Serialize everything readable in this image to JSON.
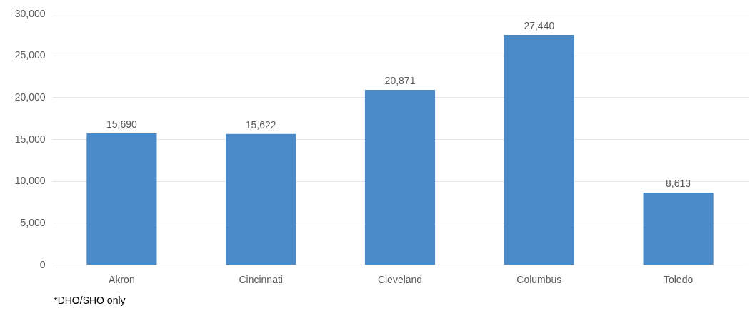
{
  "chart_data": {
    "type": "bar",
    "categories": [
      "Akron",
      "Cincinnati",
      "Cleveland",
      "Columbus",
      "Toledo"
    ],
    "values": [
      15690,
      15622,
      20871,
      27440,
      8613
    ],
    "value_labels": [
      "15,690",
      "15,622",
      "20,871",
      "27,440",
      "8,613"
    ],
    "color": "#4a8ac8",
    "ylim": [
      0,
      30000
    ],
    "yticks": [
      0,
      {
        "value": 5000,
        "label": "5,000"
      },
      {
        "value": 10000,
        "label": "10,000"
      },
      {
        "value": 15000,
        "label": "15,000"
      },
      {
        "value": 20000,
        "label": "20,000"
      },
      {
        "value": 25000,
        "label": "25,000"
      },
      {
        "value": 30000,
        "label": "30,000"
      }
    ],
    "grid": "y",
    "annotations": [
      "*DHO/SHO only"
    ]
  }
}
